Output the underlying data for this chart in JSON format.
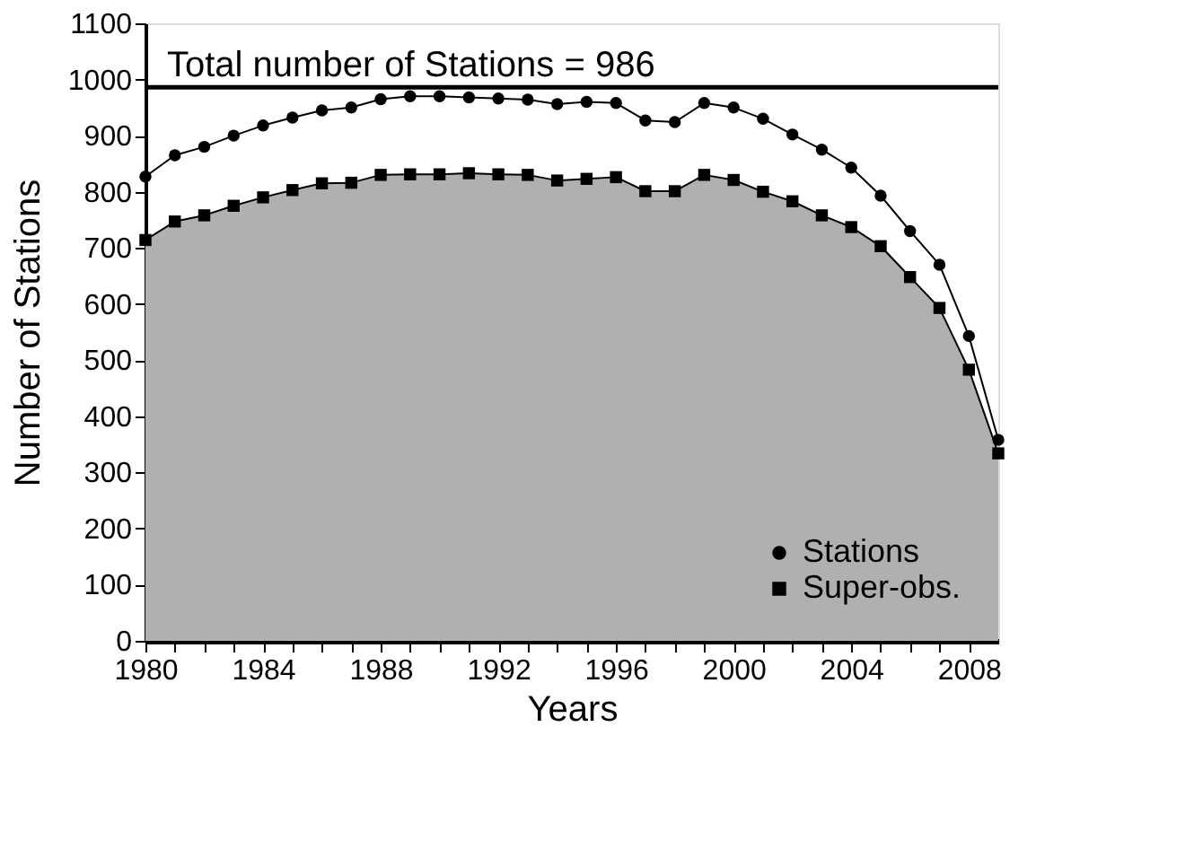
{
  "chart_data": {
    "type": "line",
    "xlabel": "Years",
    "ylabel": "Number of Stations",
    "x": [
      1980,
      1981,
      1982,
      1983,
      1984,
      1985,
      1986,
      1987,
      1988,
      1989,
      1990,
      1991,
      1992,
      1993,
      1994,
      1995,
      1996,
      1997,
      1998,
      1999,
      2000,
      2001,
      2002,
      2003,
      2004,
      2005,
      2006,
      2007,
      2008,
      2009
    ],
    "series": [
      {
        "name": "Stations",
        "color": "#000000",
        "marker": "circle",
        "values": [
          827,
          865,
          880,
          900,
          918,
          932,
          945,
          950,
          965,
          970,
          970,
          968,
          966,
          964,
          956,
          960,
          958,
          927,
          924,
          958,
          950,
          930,
          902,
          875,
          843,
          793,
          730,
          670,
          543,
          358
        ]
      },
      {
        "name": "Super-obs.",
        "type": "area",
        "color": "#000000",
        "marker": "square",
        "values": [
          714,
          747,
          758,
          775,
          790,
          803,
          815,
          816,
          830,
          831,
          831,
          833,
          831,
          830,
          820,
          823,
          826,
          801,
          801,
          830,
          821,
          800,
          783,
          758,
          737,
          703,
          648,
          593,
          483,
          334
        ]
      }
    ],
    "xlim": [
      1980,
      2009
    ],
    "xticks": [
      1980,
      {
        "value": 1981,
        "label": null
      },
      {
        "value": 1982,
        "label": null
      },
      {
        "value": 1983,
        "label": null
      },
      1984,
      {
        "value": 1985,
        "label": null
      },
      {
        "value": 1986,
        "label": null
      },
      {
        "value": 1987,
        "label": null
      },
      1988,
      {
        "value": 1989,
        "label": null
      },
      {
        "value": 1990,
        "label": null
      },
      {
        "value": 1991,
        "label": null
      },
      1992,
      {
        "value": 1993,
        "label": null
      },
      {
        "value": 1994,
        "label": null
      },
      {
        "value": 1995,
        "label": null
      },
      1996,
      {
        "value": 1997,
        "label": null
      },
      {
        "value": 1998,
        "label": null
      },
      {
        "value": 1999,
        "label": null
      },
      2000,
      {
        "value": 2001,
        "label": null
      },
      {
        "value": 2002,
        "label": null
      },
      {
        "value": 2003,
        "label": null
      },
      2004,
      {
        "value": 2005,
        "label": null
      },
      {
        "value": 2006,
        "label": null
      },
      {
        "value": 2007,
        "label": null
      },
      2008
    ],
    "ylim": [
      0,
      1100
    ],
    "yticks": [
      0,
      100,
      200,
      300,
      400,
      500,
      600,
      700,
      800,
      900,
      1000,
      1100
    ],
    "ref_lines": [
      {
        "axis": "y",
        "value": 986,
        "label": "Total number of Stations = 986",
        "color": "#000000"
      }
    ],
    "grid": false,
    "legend": "bottom right"
  }
}
